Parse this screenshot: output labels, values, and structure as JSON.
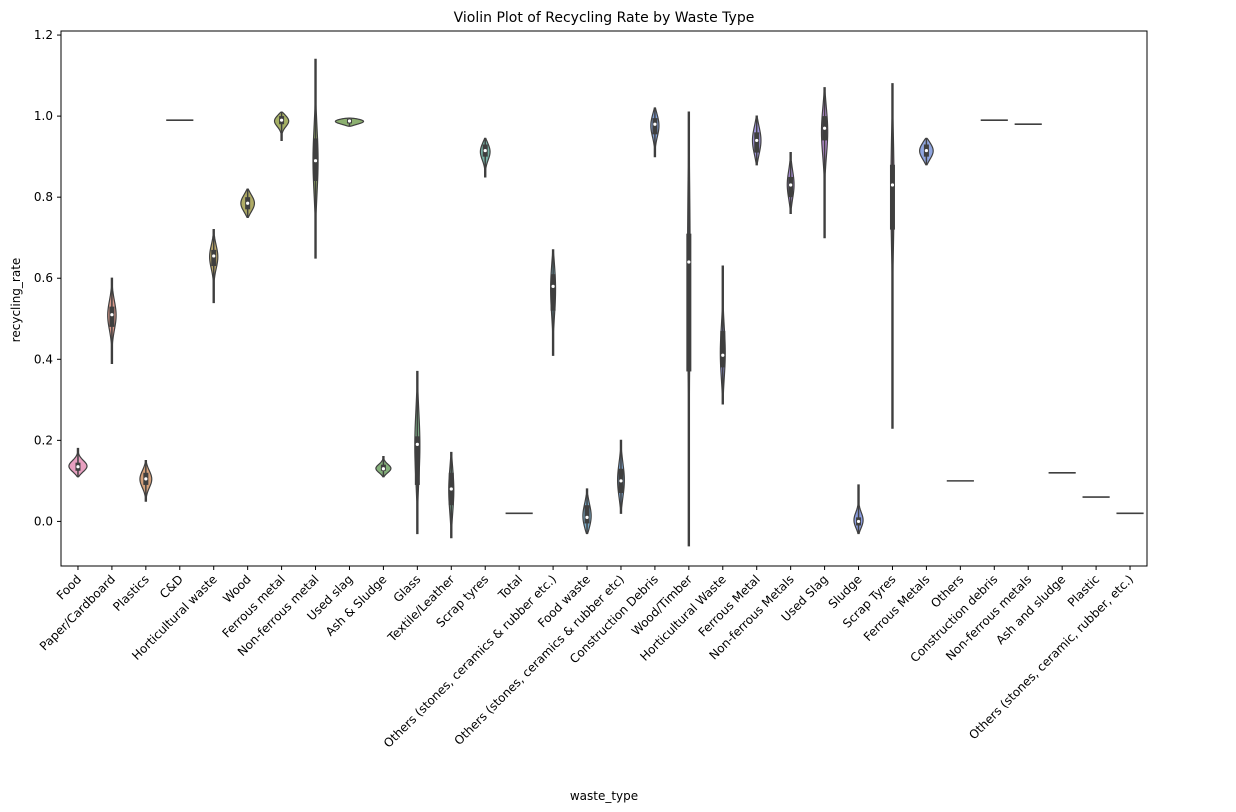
{
  "chart_data": {
    "type": "violin",
    "title": "Violin Plot of Recycling Rate by Waste Type",
    "xlabel": "waste_type",
    "ylabel": "recycling_rate",
    "ylim": [
      -0.11,
      1.21
    ],
    "yticks": [
      0.0,
      0.2,
      0.4,
      0.6,
      0.8,
      1.0,
      1.2
    ],
    "ytick_labels": [
      "0.0",
      "0.2",
      "0.4",
      "0.6",
      "0.8",
      "1.0",
      "1.2"
    ],
    "grid": false,
    "categories": [
      {
        "name": "Food",
        "color": "#E8A0C0",
        "min": 0.11,
        "max": 0.18,
        "q1": 0.125,
        "median": 0.135,
        "q3": 0.145,
        "width": 0.55
      },
      {
        "name": "Paper/Cardboard",
        "color": "#D99A8C",
        "min": 0.39,
        "max": 0.6,
        "q1": 0.48,
        "median": 0.51,
        "q3": 0.53,
        "width": 0.25
      },
      {
        "name": "Plastics",
        "color": "#D4A07A",
        "min": 0.05,
        "max": 0.15,
        "q1": 0.09,
        "median": 0.105,
        "q3": 0.12,
        "width": 0.35
      },
      {
        "name": "C&D",
        "color": "#C8A36E",
        "min": 0.99,
        "max": 0.99,
        "q1": 0.99,
        "median": 0.99,
        "q3": 0.99,
        "width": 0.8
      },
      {
        "name": "Horticultural waste",
        "color": "#BCA86A",
        "min": 0.54,
        "max": 0.72,
        "q1": 0.63,
        "median": 0.655,
        "q3": 0.67,
        "width": 0.25
      },
      {
        "name": "Wood",
        "color": "#B0AC66",
        "min": 0.75,
        "max": 0.82,
        "q1": 0.77,
        "median": 0.785,
        "q3": 0.8,
        "width": 0.4
      },
      {
        "name": "Ferrous metal",
        "color": "#A5B064",
        "min": 0.94,
        "max": 1.01,
        "q1": 0.98,
        "median": 0.99,
        "q3": 1.0,
        "width": 0.45
      },
      {
        "name": "Non-ferrous metal",
        "color": "#98B06A",
        "min": 0.65,
        "max": 1.14,
        "q1": 0.84,
        "median": 0.89,
        "q3": 0.945,
        "width": 0.15
      },
      {
        "name": "Used slag",
        "color": "#8CB070",
        "min": 0.975,
        "max": 0.995,
        "q1": 0.982,
        "median": 0.988,
        "q3": 0.993,
        "width": 0.85
      },
      {
        "name": "Ash & Sludge",
        "color": "#84B07A",
        "min": 0.11,
        "max": 0.16,
        "q1": 0.125,
        "median": 0.13,
        "q3": 0.14,
        "width": 0.45
      },
      {
        "name": "Glass",
        "color": "#7EB088",
        "min": -0.03,
        "max": 0.37,
        "q1": 0.09,
        "median": 0.19,
        "q3": 0.21,
        "width": 0.15
      },
      {
        "name": "Textile/Leather",
        "color": "#7AB096",
        "min": -0.04,
        "max": 0.17,
        "q1": 0.04,
        "median": 0.08,
        "q3": 0.12,
        "width": 0.15
      },
      {
        "name": "Scrap tyres",
        "color": "#78B0A4",
        "min": 0.85,
        "max": 0.945,
        "q1": 0.9,
        "median": 0.915,
        "q3": 0.93,
        "width": 0.3
      },
      {
        "name": "Total",
        "color": "#76AFB0",
        "min": 0.02,
        "max": 0.02,
        "q1": 0.02,
        "median": 0.02,
        "q3": 0.02,
        "width": 0.8
      },
      {
        "name": "Others (stones, ceramics & rubber etc.)",
        "color": "#76ACBC",
        "min": 0.41,
        "max": 0.67,
        "q1": 0.52,
        "median": 0.58,
        "q3": 0.61,
        "width": 0.15
      },
      {
        "name": "Food waste",
        "color": "#78A8C6",
        "min": -0.03,
        "max": 0.08,
        "q1": -0.005,
        "median": 0.01,
        "q3": 0.04,
        "width": 0.25
      },
      {
        "name": "Others (stones, ceramics & rubber etc)",
        "color": "#7CA4CE",
        "min": 0.02,
        "max": 0.2,
        "q1": 0.07,
        "median": 0.1,
        "q3": 0.13,
        "width": 0.2
      },
      {
        "name": "Construction Debris",
        "color": "#82A0D6",
        "min": 0.9,
        "max": 1.02,
        "q1": 0.955,
        "median": 0.98,
        "q3": 0.995,
        "width": 0.25
      },
      {
        "name": "Wood/Timber",
        "color": "#8A9CDA",
        "min": -0.06,
        "max": 1.01,
        "q1": 0.37,
        "median": 0.64,
        "q3": 0.71,
        "width": 0.08
      },
      {
        "name": "Horticultural Waste",
        "color": "#9498DC",
        "min": 0.29,
        "max": 0.63,
        "q1": 0.38,
        "median": 0.41,
        "q3": 0.47,
        "width": 0.15
      },
      {
        "name": "Ferrous Metal",
        "color": "#A094DC",
        "min": 0.88,
        "max": 1.0,
        "q1": 0.91,
        "median": 0.94,
        "q3": 0.96,
        "width": 0.25
      },
      {
        "name": "Non-ferrous Metals",
        "color": "#AC90D8",
        "min": 0.76,
        "max": 0.91,
        "q1": 0.8,
        "median": 0.83,
        "q3": 0.85,
        "width": 0.2
      },
      {
        "name": "Used Slag",
        "color": "#B88CD2",
        "min": 0.7,
        "max": 1.07,
        "q1": 0.94,
        "median": 0.97,
        "q3": 1.0,
        "width": 0.2
      },
      {
        "name": "Sludge",
        "color": "#8A9CE0",
        "min": -0.03,
        "max": 0.09,
        "q1": -0.01,
        "median": 0.0,
        "q3": 0.01,
        "width": 0.3
      },
      {
        "name": "Scrap Tyres",
        "color": "#CC8CC2",
        "min": 0.23,
        "max": 1.08,
        "q1": 0.72,
        "median": 0.83,
        "q3": 0.88,
        "width": 0.1
      },
      {
        "name": "Ferrous Metals",
        "color": "#8FA5E0",
        "min": 0.88,
        "max": 0.945,
        "q1": 0.9,
        "median": 0.915,
        "q3": 0.93,
        "width": 0.4
      },
      {
        "name": "Others",
        "color": "#DC90B4",
        "min": 0.1,
        "max": 0.1,
        "q1": 0.1,
        "median": 0.1,
        "q3": 0.1,
        "width": 0.8
      },
      {
        "name": "Construction debris",
        "color": "#E094AC",
        "min": 0.99,
        "max": 0.99,
        "q1": 0.99,
        "median": 0.99,
        "q3": 0.99,
        "width": 0.8
      },
      {
        "name": "Non-ferrous metals",
        "color": "#E498A6",
        "min": 0.98,
        "max": 0.98,
        "q1": 0.98,
        "median": 0.98,
        "q3": 0.98,
        "width": 0.8
      },
      {
        "name": "Ash and sludge",
        "color": "#E89CA0",
        "min": 0.12,
        "max": 0.12,
        "q1": 0.12,
        "median": 0.12,
        "q3": 0.12,
        "width": 0.8
      },
      {
        "name": "Plastic",
        "color": "#EAA09A",
        "min": 0.06,
        "max": 0.06,
        "q1": 0.06,
        "median": 0.06,
        "q3": 0.06,
        "width": 0.8
      },
      {
        "name": "Others (stones, ceramic, rubber, etc.)",
        "color": "#ECA496",
        "min": 0.02,
        "max": 0.02,
        "q1": 0.02,
        "median": 0.02,
        "q3": 0.02,
        "width": 0.8
      }
    ]
  }
}
